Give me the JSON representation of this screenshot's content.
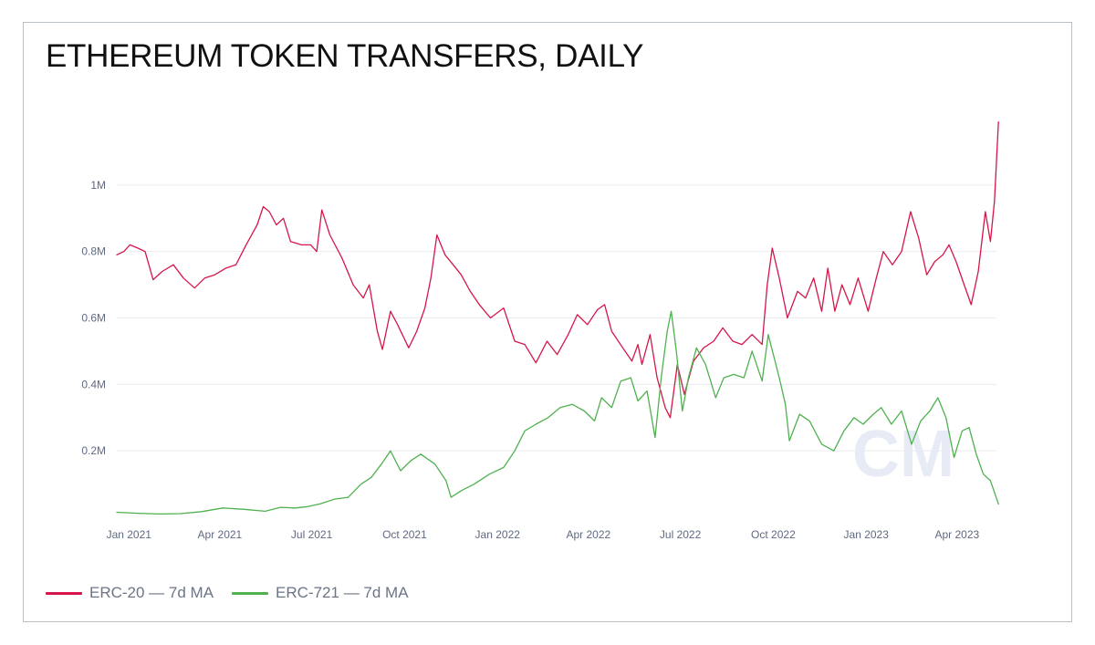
{
  "title": "ETHEREUM TOKEN TRANSFERS, DAILY",
  "chart_data": {
    "type": "line",
    "title": "ETHEREUM TOKEN TRANSFERS, DAILY",
    "xlabel": "",
    "ylabel": "",
    "x_ticks": [
      "Jan 2021",
      "Apr 2021",
      "Jul 2021",
      "Oct 2021",
      "Jan 2022",
      "Apr 2022",
      "Jul 2022",
      "Oct 2022",
      "Jan 2023",
      "Apr 2023"
    ],
    "y_ticks": [
      "0.2M",
      "0.4M",
      "0.6M",
      "0.8M",
      "1M"
    ],
    "y_tick_values": [
      200000,
      400000,
      600000,
      800000,
      1000000
    ],
    "ylim": [
      0,
      1200000
    ],
    "xlim": [
      "2020-12-20",
      "2023-05-10"
    ],
    "grid": true,
    "legend": "bottom-left",
    "watermark": "CM",
    "series": [
      {
        "name": "ERC-20 — 7d MA",
        "color": "#d6164a",
        "points": [
          [
            "2020-12-20",
            790000
          ],
          [
            "2020-12-27",
            800000
          ],
          [
            "2021-01-02",
            820000
          ],
          [
            "2021-01-10",
            810000
          ],
          [
            "2021-01-17",
            800000
          ],
          [
            "2021-01-25",
            715000
          ],
          [
            "2021-02-03",
            740000
          ],
          [
            "2021-02-14",
            760000
          ],
          [
            "2021-02-24",
            720000
          ],
          [
            "2021-03-07",
            690000
          ],
          [
            "2021-03-17",
            720000
          ],
          [
            "2021-03-27",
            730000
          ],
          [
            "2021-04-07",
            750000
          ],
          [
            "2021-04-17",
            760000
          ],
          [
            "2021-04-27",
            820000
          ],
          [
            "2021-05-08",
            880000
          ],
          [
            "2021-05-14",
            935000
          ],
          [
            "2021-05-20",
            920000
          ],
          [
            "2021-05-27",
            880000
          ],
          [
            "2021-06-03",
            900000
          ],
          [
            "2021-06-10",
            830000
          ],
          [
            "2021-06-21",
            820000
          ],
          [
            "2021-06-30",
            820000
          ],
          [
            "2021-07-06",
            800000
          ],
          [
            "2021-07-11",
            925000
          ],
          [
            "2021-07-19",
            850000
          ],
          [
            "2021-07-31",
            780000
          ],
          [
            "2021-08-11",
            700000
          ],
          [
            "2021-08-21",
            660000
          ],
          [
            "2021-08-27",
            700000
          ],
          [
            "2021-09-04",
            560000
          ],
          [
            "2021-09-09",
            505000
          ],
          [
            "2021-09-17",
            620000
          ],
          [
            "2021-09-24",
            580000
          ],
          [
            "2021-10-05",
            510000
          ],
          [
            "2021-10-13",
            560000
          ],
          [
            "2021-10-21",
            630000
          ],
          [
            "2021-10-27",
            720000
          ],
          [
            "2021-11-02",
            850000
          ],
          [
            "2021-11-10",
            790000
          ],
          [
            "2021-11-18",
            760000
          ],
          [
            "2021-11-26",
            730000
          ],
          [
            "2021-12-05",
            680000
          ],
          [
            "2021-12-14",
            640000
          ],
          [
            "2021-12-25",
            600000
          ],
          [
            "2022-01-07",
            630000
          ],
          [
            "2022-01-18",
            530000
          ],
          [
            "2022-01-28",
            520000
          ],
          [
            "2022-02-08",
            465000
          ],
          [
            "2022-02-19",
            530000
          ],
          [
            "2022-03-01",
            490000
          ],
          [
            "2022-03-12",
            550000
          ],
          [
            "2022-03-21",
            610000
          ],
          [
            "2022-03-31",
            580000
          ],
          [
            "2022-04-10",
            625000
          ],
          [
            "2022-04-17",
            640000
          ],
          [
            "2022-04-24",
            560000
          ],
          [
            "2022-05-05",
            510000
          ],
          [
            "2022-05-14",
            470000
          ],
          [
            "2022-05-20",
            520000
          ],
          [
            "2022-05-24",
            460000
          ],
          [
            "2022-06-01",
            550000
          ],
          [
            "2022-06-08",
            420000
          ],
          [
            "2022-06-16",
            330000
          ],
          [
            "2022-06-21",
            300000
          ],
          [
            "2022-06-28",
            460000
          ],
          [
            "2022-07-05",
            370000
          ],
          [
            "2022-07-14",
            470000
          ],
          [
            "2022-07-24",
            510000
          ],
          [
            "2022-08-03",
            530000
          ],
          [
            "2022-08-12",
            570000
          ],
          [
            "2022-08-22",
            530000
          ],
          [
            "2022-08-31",
            520000
          ],
          [
            "2022-09-10",
            550000
          ],
          [
            "2022-09-20",
            520000
          ],
          [
            "2022-09-25",
            700000
          ],
          [
            "2022-09-30",
            810000
          ],
          [
            "2022-10-07",
            720000
          ],
          [
            "2022-10-15",
            600000
          ],
          [
            "2022-10-25",
            680000
          ],
          [
            "2022-11-02",
            660000
          ],
          [
            "2022-11-10",
            720000
          ],
          [
            "2022-11-18",
            620000
          ],
          [
            "2022-11-24",
            750000
          ],
          [
            "2022-12-01",
            620000
          ],
          [
            "2022-12-08",
            700000
          ],
          [
            "2022-12-16",
            640000
          ],
          [
            "2022-12-24",
            720000
          ],
          [
            "2023-01-03",
            620000
          ],
          [
            "2023-01-11",
            720000
          ],
          [
            "2023-01-18",
            800000
          ],
          [
            "2023-01-27",
            760000
          ],
          [
            "2023-02-05",
            800000
          ],
          [
            "2023-02-14",
            920000
          ],
          [
            "2023-02-22",
            840000
          ],
          [
            "2023-03-02",
            730000
          ],
          [
            "2023-03-10",
            770000
          ],
          [
            "2023-03-18",
            790000
          ],
          [
            "2023-03-24",
            820000
          ],
          [
            "2023-03-31",
            770000
          ],
          [
            "2023-04-08",
            700000
          ],
          [
            "2023-04-15",
            640000
          ],
          [
            "2023-04-22",
            740000
          ],
          [
            "2023-04-29",
            920000
          ],
          [
            "2023-05-04",
            830000
          ],
          [
            "2023-05-08",
            950000
          ],
          [
            "2023-05-12",
            1190000
          ]
        ]
      },
      {
        "name": "ERC-721 — 7d MA",
        "color": "#4fb14f",
        "points": [
          [
            "2020-12-20",
            15000
          ],
          [
            "2021-01-10",
            12000
          ],
          [
            "2021-01-31",
            10000
          ],
          [
            "2021-02-21",
            11000
          ],
          [
            "2021-03-14",
            17000
          ],
          [
            "2021-04-04",
            28000
          ],
          [
            "2021-04-25",
            24000
          ],
          [
            "2021-05-16",
            18000
          ],
          [
            "2021-05-31",
            30000
          ],
          [
            "2021-06-15",
            28000
          ],
          [
            "2021-06-27",
            32000
          ],
          [
            "2021-07-09",
            40000
          ],
          [
            "2021-07-24",
            55000
          ],
          [
            "2021-08-06",
            60000
          ],
          [
            "2021-08-19",
            100000
          ],
          [
            "2021-08-29",
            120000
          ],
          [
            "2021-09-08",
            160000
          ],
          [
            "2021-09-17",
            200000
          ],
          [
            "2021-09-27",
            140000
          ],
          [
            "2021-10-07",
            170000
          ],
          [
            "2021-10-17",
            190000
          ],
          [
            "2021-10-31",
            160000
          ],
          [
            "2021-11-11",
            110000
          ],
          [
            "2021-11-16",
            60000
          ],
          [
            "2021-11-26",
            80000
          ],
          [
            "2021-12-09",
            100000
          ],
          [
            "2021-12-24",
            130000
          ],
          [
            "2022-01-07",
            150000
          ],
          [
            "2022-01-18",
            200000
          ],
          [
            "2022-01-28",
            260000
          ],
          [
            "2022-02-08",
            280000
          ],
          [
            "2022-02-20",
            300000
          ],
          [
            "2022-03-04",
            330000
          ],
          [
            "2022-03-16",
            340000
          ],
          [
            "2022-03-28",
            320000
          ],
          [
            "2022-04-07",
            290000
          ],
          [
            "2022-04-14",
            360000
          ],
          [
            "2022-04-24",
            330000
          ],
          [
            "2022-05-03",
            410000
          ],
          [
            "2022-05-13",
            420000
          ],
          [
            "2022-05-20",
            350000
          ],
          [
            "2022-05-29",
            380000
          ],
          [
            "2022-06-06",
            240000
          ],
          [
            "2022-06-12",
            420000
          ],
          [
            "2022-06-18",
            560000
          ],
          [
            "2022-06-22",
            620000
          ],
          [
            "2022-06-27",
            500000
          ],
          [
            "2022-07-03",
            320000
          ],
          [
            "2022-07-09",
            420000
          ],
          [
            "2022-07-17",
            510000
          ],
          [
            "2022-07-26",
            460000
          ],
          [
            "2022-08-05",
            360000
          ],
          [
            "2022-08-13",
            420000
          ],
          [
            "2022-08-23",
            430000
          ],
          [
            "2022-09-02",
            420000
          ],
          [
            "2022-09-10",
            500000
          ],
          [
            "2022-09-20",
            410000
          ],
          [
            "2022-09-26",
            550000
          ],
          [
            "2022-10-07",
            420000
          ],
          [
            "2022-10-13",
            340000
          ],
          [
            "2022-10-17",
            230000
          ],
          [
            "2022-10-27",
            310000
          ],
          [
            "2022-11-06",
            290000
          ],
          [
            "2022-11-18",
            220000
          ],
          [
            "2022-11-30",
            200000
          ],
          [
            "2022-12-10",
            260000
          ],
          [
            "2022-12-20",
            300000
          ],
          [
            "2022-12-29",
            280000
          ],
          [
            "2023-01-08",
            310000
          ],
          [
            "2023-01-16",
            330000
          ],
          [
            "2023-01-26",
            280000
          ],
          [
            "2023-02-05",
            320000
          ],
          [
            "2023-02-15",
            220000
          ],
          [
            "2023-02-24",
            290000
          ],
          [
            "2023-03-05",
            320000
          ],
          [
            "2023-03-13",
            360000
          ],
          [
            "2023-03-21",
            300000
          ],
          [
            "2023-03-29",
            180000
          ],
          [
            "2023-04-06",
            260000
          ],
          [
            "2023-04-13",
            270000
          ],
          [
            "2023-04-20",
            190000
          ],
          [
            "2023-04-27",
            130000
          ],
          [
            "2023-05-04",
            110000
          ],
          [
            "2023-05-12",
            40000
          ]
        ]
      }
    ]
  },
  "legend": [
    {
      "label": "ERC-20 — 7d MA",
      "color": "#d6164a"
    },
    {
      "label": "ERC-721 — 7d MA",
      "color": "#4fb14f"
    }
  ],
  "colors": {
    "grid": "#ececf1",
    "tick_text": "#5f6982",
    "title": "#111111"
  }
}
